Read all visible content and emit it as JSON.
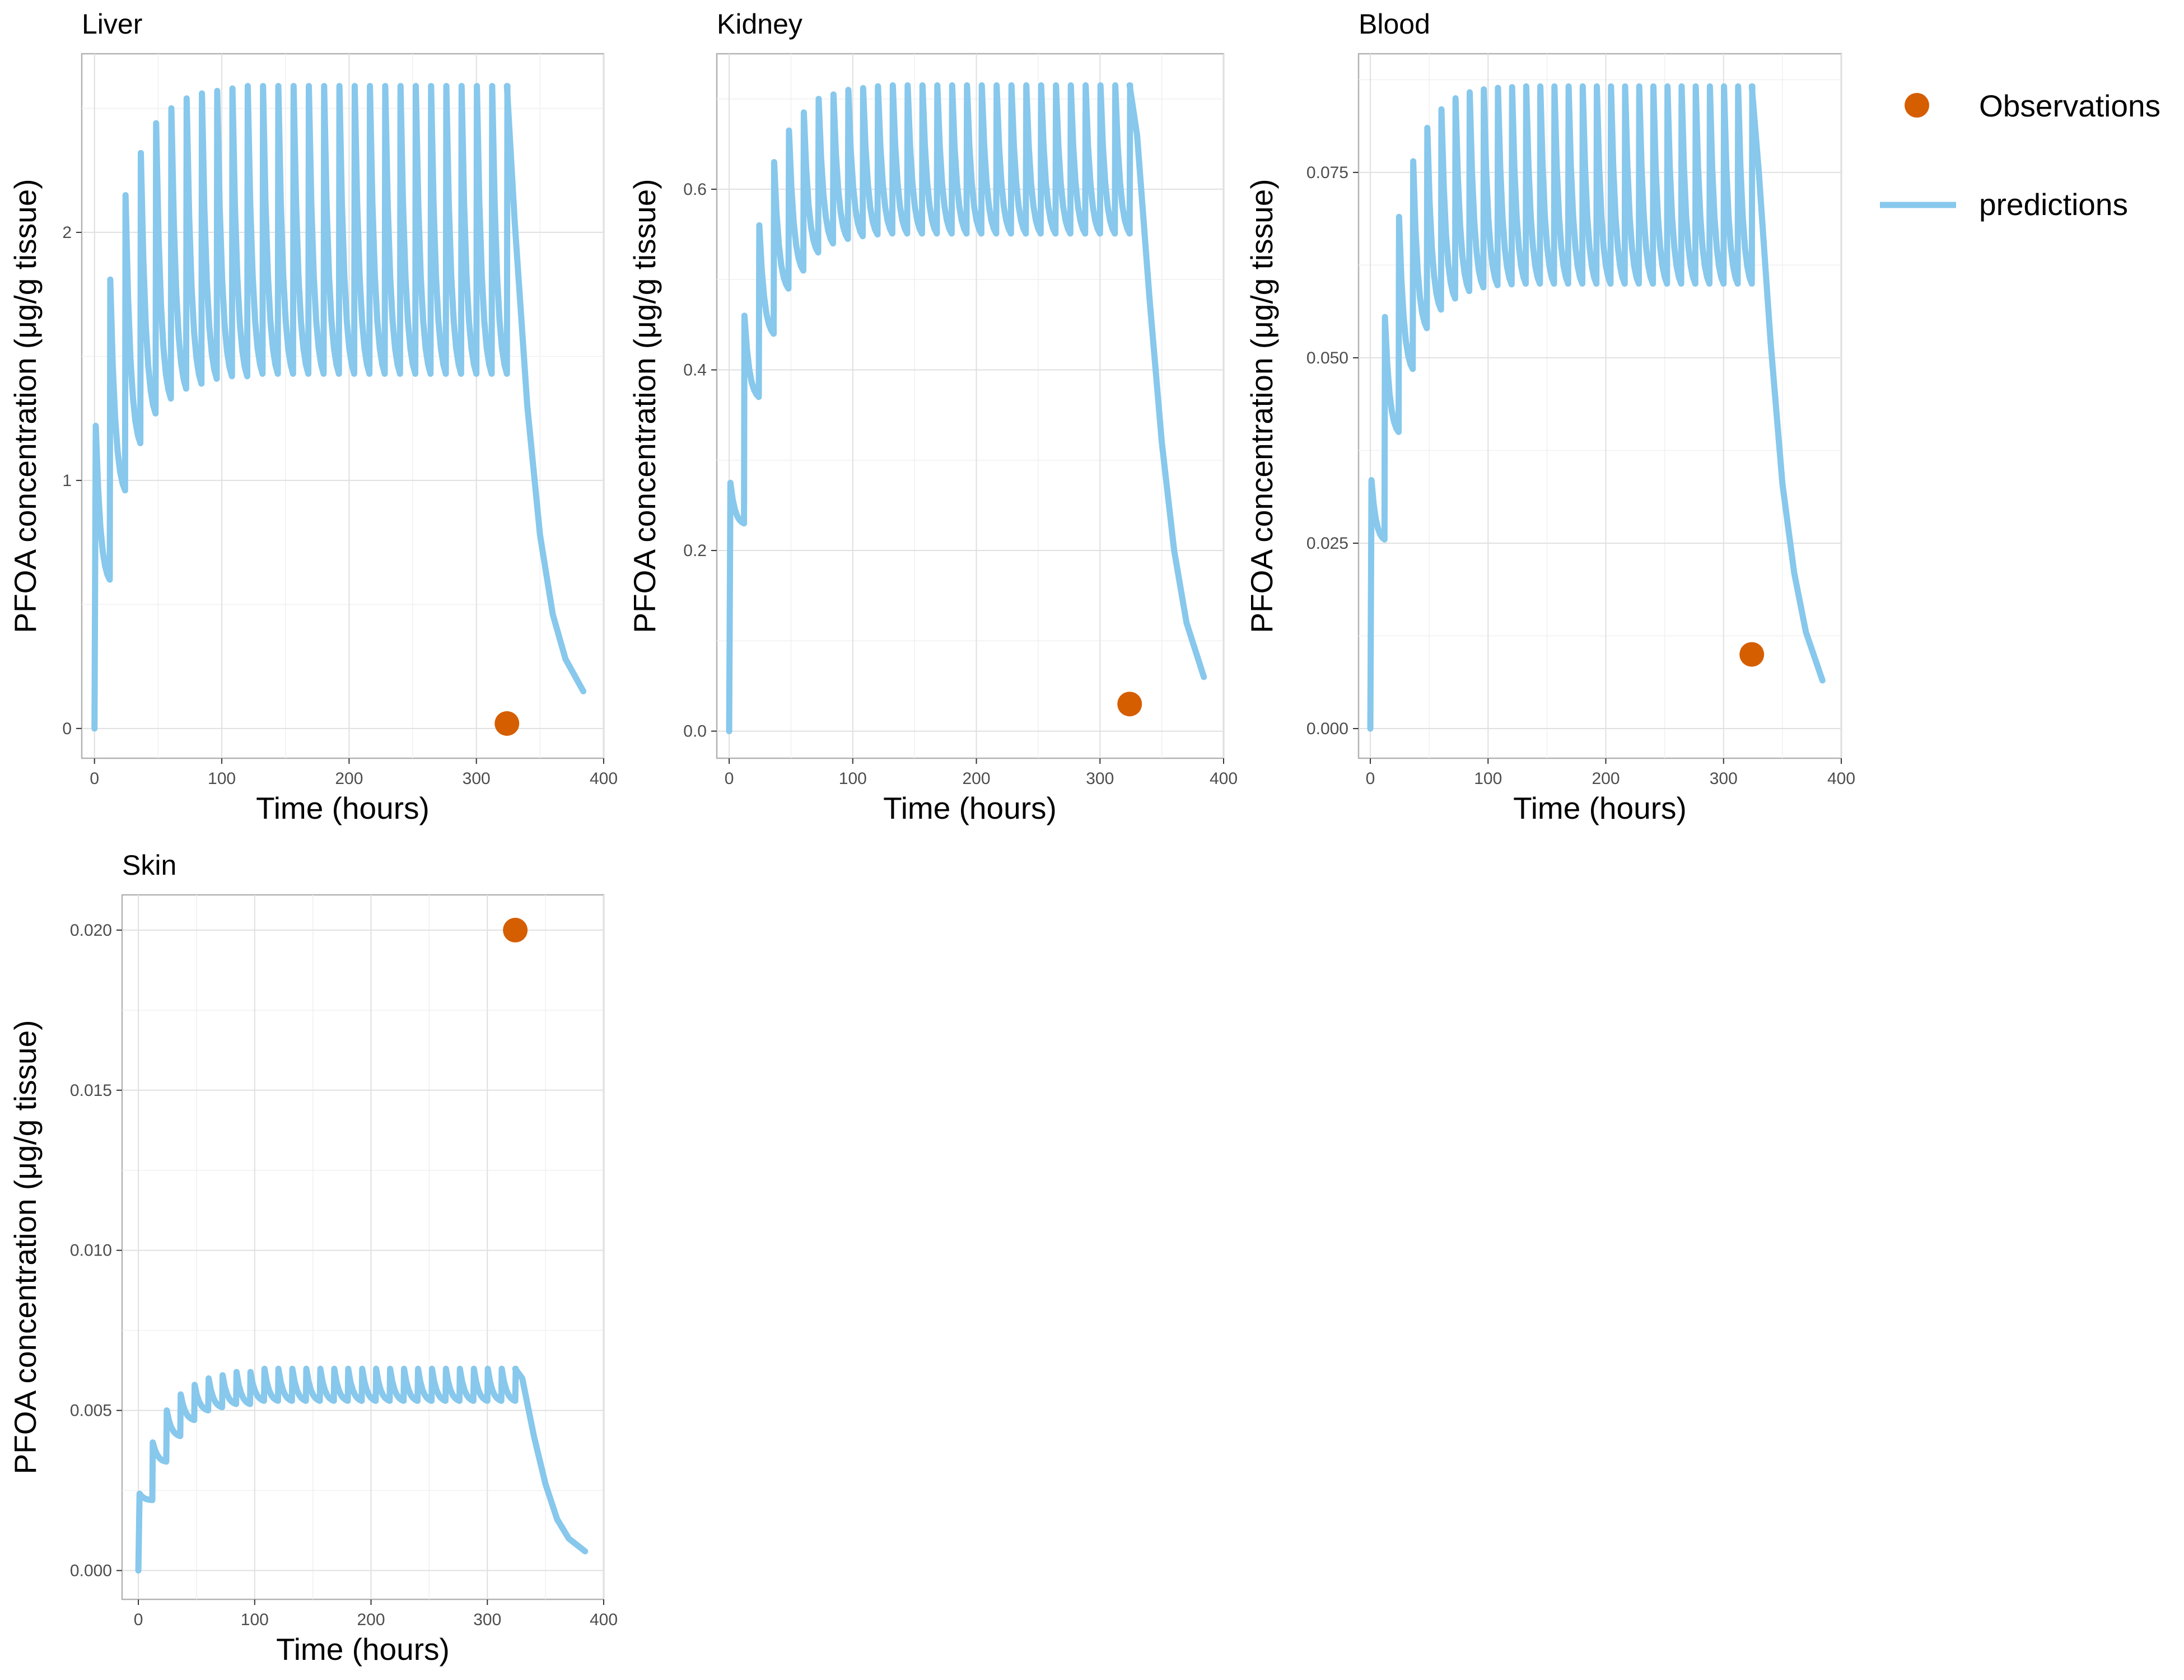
{
  "colors": {
    "predictions": "#87c8ec",
    "observations": "#d55e00",
    "frame": "#b3b3b3",
    "grid": "#e0e0e0"
  },
  "legend": {
    "observations_label": "Observations",
    "predictions_label": "predictions"
  },
  "chart_data": [
    {
      "type": "line",
      "title": "Liver",
      "xlabel": "Time (hours)",
      "ylabel": "PFOA concentration (μg/g tissue)",
      "xlim": [
        -10,
        400
      ],
      "ylim": [
        -0.12,
        2.72
      ],
      "x_ticks": [
        0,
        100,
        200,
        300,
        400
      ],
      "x_tick_labels": [
        "0",
        "100",
        "200",
        "300",
        "400"
      ],
      "y_ticks": [
        0,
        1,
        2
      ],
      "y_tick_labels": [
        "0",
        "1",
        "2"
      ],
      "series": [
        {
          "name": "predictions",
          "dose_interval_hours": 12,
          "dosing_stop_hours": 324,
          "end_hours": 384,
          "dose_peaks": [
            1.22,
            1.81,
            2.15,
            2.32,
            2.44,
            2.5,
            2.54,
            2.56,
            2.57,
            2.58,
            2.59,
            2.59,
            2.59,
            2.59,
            2.59,
            2.59,
            2.59,
            2.59,
            2.59,
            2.59,
            2.59,
            2.59,
            2.59,
            2.59,
            2.59,
            2.59,
            2.59,
            2.59
          ],
          "pre_dose_troughs": [
            0.6,
            0.96,
            1.15,
            1.27,
            1.33,
            1.37,
            1.39,
            1.41,
            1.42,
            1.42,
            1.43,
            1.43,
            1.43,
            1.43,
            1.43,
            1.43,
            1.43,
            1.43,
            1.43,
            1.43,
            1.43,
            1.43,
            1.43,
            1.43,
            1.43,
            1.43,
            1.43
          ],
          "washout": {
            "x": [
              324,
              330,
              340,
              350,
              360,
              370,
              384
            ],
            "y": [
              2.59,
              2.05,
              1.3,
              0.78,
              0.46,
              0.28,
              0.15
            ]
          }
        },
        {
          "name": "Observations",
          "points": [
            {
              "x": 324,
              "y": 0.02
            }
          ]
        }
      ]
    },
    {
      "type": "line",
      "title": "Kidney",
      "xlabel": "Time (hours)",
      "ylabel": "PFOA concentration (μg/g tissue)",
      "xlim": [
        -10,
        400
      ],
      "ylim": [
        -0.03,
        0.75
      ],
      "x_ticks": [
        0,
        100,
        200,
        300,
        400
      ],
      "x_tick_labels": [
        "0",
        "100",
        "200",
        "300",
        "400"
      ],
      "y_ticks": [
        0.0,
        0.2,
        0.4,
        0.6
      ],
      "y_tick_labels": [
        "0.0",
        "0.2",
        "0.4",
        "0.6"
      ],
      "series": [
        {
          "name": "predictions",
          "dose_interval_hours": 12,
          "dosing_stop_hours": 324,
          "end_hours": 384,
          "dose_peaks": [
            0.275,
            0.46,
            0.56,
            0.63,
            0.665,
            0.685,
            0.7,
            0.705,
            0.71,
            0.712,
            0.714,
            0.715,
            0.715,
            0.715,
            0.715,
            0.715,
            0.715,
            0.715,
            0.715,
            0.715,
            0.715,
            0.715,
            0.715,
            0.715,
            0.715,
            0.715,
            0.715,
            0.715
          ],
          "pre_dose_troughs": [
            0.23,
            0.37,
            0.44,
            0.49,
            0.51,
            0.53,
            0.54,
            0.545,
            0.548,
            0.55,
            0.551,
            0.551,
            0.551,
            0.551,
            0.551,
            0.551,
            0.551,
            0.551,
            0.551,
            0.551,
            0.551,
            0.551,
            0.551,
            0.551,
            0.551,
            0.551,
            0.551
          ],
          "washout": {
            "x": [
              324,
              330,
              340,
              350,
              360,
              370,
              384
            ],
            "y": [
              0.715,
              0.66,
              0.48,
              0.32,
              0.2,
              0.12,
              0.06
            ]
          }
        },
        {
          "name": "Observations",
          "points": [
            {
              "x": 324,
              "y": 0.03
            }
          ]
        }
      ]
    },
    {
      "type": "line",
      "title": "Blood",
      "xlabel": "Time (hours)",
      "ylabel": "PFOA concentration (μg/g tissue)",
      "xlim": [
        -10,
        400
      ],
      "ylim": [
        -0.004,
        0.091
      ],
      "x_ticks": [
        0,
        100,
        200,
        300,
        400
      ],
      "x_tick_labels": [
        "0",
        "100",
        "200",
        "300",
        "400"
      ],
      "y_ticks": [
        0.0,
        0.025,
        0.05,
        0.075
      ],
      "y_tick_labels": [
        "0.000",
        "0.025",
        "0.050",
        "0.075"
      ],
      "series": [
        {
          "name": "predictions",
          "dose_interval_hours": 12,
          "dosing_stop_hours": 324,
          "end_hours": 384,
          "dose_peaks": [
            0.0335,
            0.0555,
            0.069,
            0.0765,
            0.081,
            0.0835,
            0.085,
            0.0858,
            0.0862,
            0.0864,
            0.0865,
            0.0866,
            0.0866,
            0.0866,
            0.0866,
            0.0866,
            0.0866,
            0.0866,
            0.0866,
            0.0866,
            0.0866,
            0.0866,
            0.0866,
            0.0866,
            0.0866,
            0.0866,
            0.0866,
            0.0866
          ],
          "pre_dose_troughs": [
            0.0255,
            0.04,
            0.0485,
            0.054,
            0.0565,
            0.058,
            0.059,
            0.0595,
            0.0598,
            0.0599,
            0.06,
            0.06,
            0.06,
            0.06,
            0.06,
            0.06,
            0.06,
            0.06,
            0.06,
            0.06,
            0.06,
            0.06,
            0.06,
            0.06,
            0.06,
            0.06,
            0.06
          ],
          "washout": {
            "x": [
              324,
              330,
              340,
              350,
              360,
              370,
              384
            ],
            "y": [
              0.0866,
              0.075,
              0.052,
              0.033,
              0.021,
              0.013,
              0.0065
            ]
          }
        },
        {
          "name": "Observations",
          "points": [
            {
              "x": 324,
              "y": 0.01
            }
          ]
        }
      ]
    },
    {
      "type": "line",
      "title": "Skin",
      "xlabel": "Time (hours)",
      "ylabel": "PFOA concentration (μg/g tissue)",
      "xlim": [
        -14,
        400
      ],
      "ylim": [
        -0.0009,
        0.0211
      ],
      "x_ticks": [
        0,
        100,
        200,
        300,
        400
      ],
      "x_tick_labels": [
        "0",
        "100",
        "200",
        "300",
        "400"
      ],
      "y_ticks": [
        0.0,
        0.005,
        0.01,
        0.015,
        0.02
      ],
      "y_tick_labels": [
        "0.000",
        "0.005",
        "0.010",
        "0.015",
        "0.020"
      ],
      "series": [
        {
          "name": "predictions",
          "dose_interval_hours": 12,
          "dosing_stop_hours": 324,
          "end_hours": 384,
          "dose_peaks": [
            0.0024,
            0.004,
            0.005,
            0.0055,
            0.0058,
            0.006,
            0.0061,
            0.0062,
            0.0062,
            0.0063,
            0.0063,
            0.0063,
            0.0063,
            0.0063,
            0.0063,
            0.0063,
            0.0063,
            0.0063,
            0.0063,
            0.0063,
            0.0063,
            0.0063,
            0.0063,
            0.0063,
            0.0063,
            0.0063,
            0.0063,
            0.0063
          ],
          "pre_dose_troughs": [
            0.0022,
            0.0034,
            0.0042,
            0.0047,
            0.005,
            0.0051,
            0.0052,
            0.0052,
            0.0053,
            0.0053,
            0.0053,
            0.0053,
            0.0053,
            0.0053,
            0.0053,
            0.0053,
            0.0053,
            0.0053,
            0.0053,
            0.0053,
            0.0053,
            0.0053,
            0.0053,
            0.0053,
            0.0053,
            0.0053,
            0.0053
          ],
          "washout": {
            "x": [
              324,
              330,
              340,
              350,
              360,
              370,
              384
            ],
            "y": [
              0.0063,
              0.006,
              0.0042,
              0.0027,
              0.0016,
              0.001,
              0.0006
            ]
          }
        },
        {
          "name": "Observations",
          "points": [
            {
              "x": 324,
              "y": 0.02
            }
          ]
        }
      ]
    }
  ]
}
